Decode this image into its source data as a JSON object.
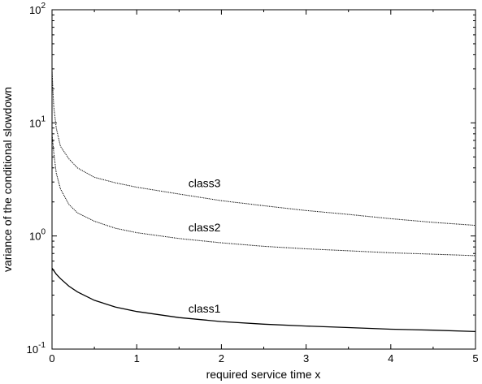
{
  "chart_data": {
    "type": "line",
    "title": "",
    "xlabel": "required service time x",
    "ylabel": "variance of the conditional slowdown",
    "xlim": [
      0,
      5
    ],
    "ylim": [
      0.1,
      100
    ],
    "yscale": "log",
    "grid": false,
    "x_ticks": [
      {
        "value": 0,
        "label": "0"
      },
      {
        "value": 1,
        "label": "1"
      },
      {
        "value": 2,
        "label": "2"
      },
      {
        "value": 3,
        "label": "3"
      },
      {
        "value": 4,
        "label": "4"
      },
      {
        "value": 5,
        "label": "5"
      }
    ],
    "y_ticks": [
      {
        "value": 0.1,
        "base": "10",
        "exp": "-1"
      },
      {
        "value": 1,
        "base": "10",
        "exp": "0"
      },
      {
        "value": 10,
        "base": "10",
        "exp": "1"
      },
      {
        "value": 100,
        "base": "10",
        "exp": "2"
      }
    ],
    "series": [
      {
        "name": "class1",
        "label_at": [
          1.8,
          0.21
        ],
        "style": "solid",
        "x": [
          0,
          0.05,
          0.1,
          0.2,
          0.3,
          0.5,
          0.75,
          1,
          1.5,
          2,
          2.5,
          3,
          3.5,
          4,
          4.5,
          5
        ],
        "y": [
          0.52,
          0.46,
          0.42,
          0.36,
          0.32,
          0.27,
          0.235,
          0.215,
          0.19,
          0.175,
          0.166,
          0.16,
          0.155,
          0.15,
          0.147,
          0.143
        ]
      },
      {
        "name": "class2",
        "label_at": [
          1.8,
          1.1
        ],
        "style": "dotted",
        "x": [
          0,
          0.02,
          0.05,
          0.1,
          0.2,
          0.3,
          0.5,
          0.75,
          1,
          1.5,
          2,
          2.5,
          3,
          3.5,
          4,
          4.5,
          5
        ],
        "y": [
          8,
          5.5,
          3.6,
          2.6,
          1.9,
          1.6,
          1.35,
          1.17,
          1.07,
          0.95,
          0.87,
          0.81,
          0.77,
          0.74,
          0.71,
          0.69,
          0.67
        ]
      },
      {
        "name": "class3",
        "label_at": [
          1.8,
          2.7
        ],
        "style": "dotted",
        "x": [
          0,
          0.01,
          0.02,
          0.05,
          0.1,
          0.2,
          0.3,
          0.5,
          0.75,
          1,
          1.5,
          2,
          2.5,
          3,
          3.5,
          4,
          4.5,
          5
        ],
        "y": [
          30,
          20,
          14,
          9,
          6.2,
          4.8,
          4.0,
          3.3,
          2.95,
          2.7,
          2.35,
          2.05,
          1.85,
          1.68,
          1.55,
          1.42,
          1.32,
          1.24
        ]
      }
    ]
  }
}
